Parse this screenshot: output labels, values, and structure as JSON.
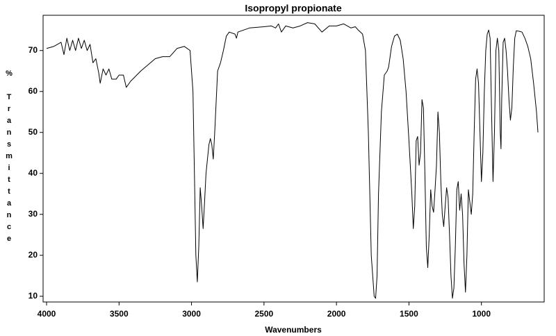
{
  "chart_data": {
    "type": "line",
    "title": "Isopropyl propionate",
    "xlabel": "Wavenumbers",
    "ylabel": "% Transmittance",
    "color": "#000000",
    "xlim": [
      4024,
      567
    ],
    "ylim": [
      8.6,
      78.6
    ],
    "xticks": [
      4000,
      3500,
      3000,
      2500,
      2000,
      1500,
      1000
    ],
    "yticks": [
      10,
      20,
      30,
      40,
      50,
      60,
      70
    ],
    "x": [
      4000,
      3950,
      3900,
      3880,
      3860,
      3840,
      3820,
      3800,
      3780,
      3760,
      3740,
      3720,
      3700,
      3680,
      3660,
      3640,
      3630,
      3610,
      3590,
      3570,
      3550,
      3520,
      3500,
      3470,
      3450,
      3420,
      3350,
      3250,
      3200,
      3150,
      3100,
      3050,
      3010,
      2990,
      2980,
      2970,
      2960,
      2950,
      2940,
      2930,
      2920,
      2910,
      2900,
      2880,
      2870,
      2860,
      2850,
      2840,
      2820,
      2800,
      2780,
      2760,
      2740,
      2700,
      2690,
      2680,
      2600,
      2500,
      2450,
      2420,
      2400,
      2380,
      2350,
      2300,
      2250,
      2200,
      2150,
      2100,
      2050,
      2000,
      1950,
      1900,
      1870,
      1850,
      1820,
      1800,
      1780,
      1760,
      1740,
      1730,
      1720,
      1710,
      1690,
      1670,
      1650,
      1640,
      1620,
      1600,
      1580,
      1560,
      1540,
      1520,
      1500,
      1480,
      1470,
      1460,
      1450,
      1440,
      1430,
      1420,
      1410,
      1400,
      1390,
      1380,
      1370,
      1360,
      1350,
      1340,
      1330,
      1320,
      1310,
      1300,
      1290,
      1280,
      1270,
      1260,
      1250,
      1240,
      1230,
      1220,
      1210,
      1200,
      1190,
      1180,
      1170,
      1160,
      1150,
      1140,
      1130,
      1120,
      1110,
      1100,
      1090,
      1080,
      1070,
      1060,
      1050,
      1040,
      1030,
      1020,
      1010,
      1000,
      990,
      980,
      970,
      960,
      950,
      940,
      930,
      920,
      910,
      900,
      890,
      880,
      870,
      865,
      860,
      850,
      840,
      830,
      820,
      810,
      800,
      790,
      780,
      770,
      760,
      740,
      720,
      700,
      680,
      660,
      640,
      620,
      610
    ],
    "values": [
      70.5,
      71,
      72,
      69,
      73,
      70,
      72.5,
      70,
      73,
      70.5,
      72.5,
      70,
      71.5,
      67,
      68,
      64.5,
      62,
      65.5,
      64,
      65.5,
      63,
      63,
      64,
      64,
      61,
      62.5,
      65,
      68,
      68.5,
      68.5,
      70.5,
      71,
      70,
      60,
      40,
      20,
      13.5,
      22,
      36.5,
      32,
      26.5,
      33,
      40,
      47,
      48.5,
      47,
      43.5,
      50,
      65,
      67,
      70,
      73.5,
      74.5,
      74,
      73,
      74.5,
      75.5,
      75.8,
      76,
      75.5,
      76.5,
      74.5,
      76,
      75.5,
      76,
      76.8,
      76.5,
      74.5,
      76,
      76,
      76.5,
      75.5,
      75.8,
      75,
      74,
      70,
      50,
      20,
      10,
      9.5,
      15,
      35,
      55,
      64,
      65,
      66,
      71,
      73.5,
      74,
      72.5,
      68,
      60,
      48,
      35,
      26.5,
      32,
      48,
      49,
      42,
      45,
      58,
      56,
      40,
      22,
      17,
      25,
      36,
      32,
      30.5,
      36,
      42,
      55,
      50,
      38,
      30,
      27,
      32,
      36.5,
      34,
      25,
      15,
      9.5,
      12,
      22,
      36,
      38,
      31,
      35,
      30,
      18,
      11,
      20,
      36,
      33,
      30,
      35,
      50,
      63,
      65.5,
      62,
      50,
      38,
      45,
      60,
      70,
      74,
      75,
      73,
      55,
      38,
      50,
      70,
      73,
      70,
      50,
      46,
      58,
      72,
      73,
      70,
      65,
      58,
      53,
      56,
      66,
      73,
      74.8,
      74.7,
      74.5,
      73,
      71,
      68,
      62,
      55,
      50
    ]
  }
}
